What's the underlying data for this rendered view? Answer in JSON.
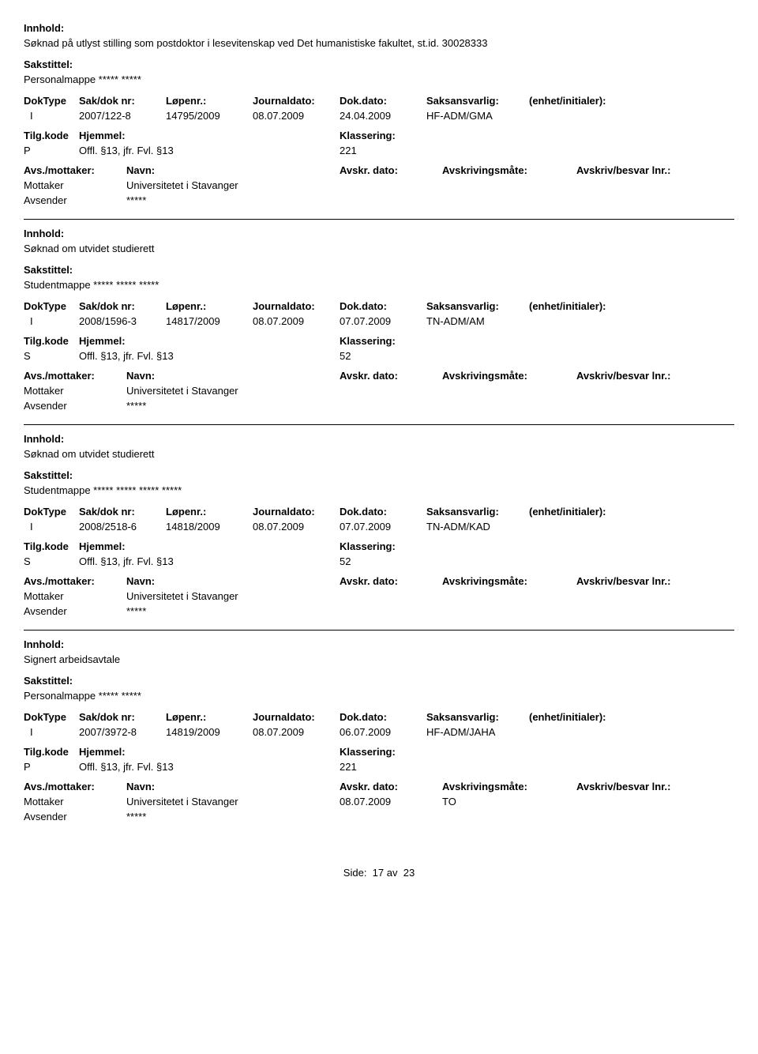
{
  "labels": {
    "innhold": "Innhold:",
    "sakstittel": "Sakstittel:",
    "doktype": "DokType",
    "sakdoknr": "Sak/dok nr:",
    "lopenr": "Løpenr.:",
    "journaldato": "Journaldato:",
    "dokdato": "Dok.dato:",
    "saksansvarlig": "Saksansvarlig:",
    "enhet": "(enhet/initialer):",
    "tilgkode": "Tilg.kode",
    "hjemmel": "Hjemmel:",
    "klassering": "Klassering:",
    "avsmottaker": "Avs./mottaker:",
    "navn": "Navn:",
    "avskrdato": "Avskr. dato:",
    "avskrivingsmate": "Avskrivingsmåte:",
    "avskrivbesvar": "Avskriv/besvar lnr.:",
    "mottaker": "Mottaker",
    "avsender": "Avsender"
  },
  "records": [
    {
      "innhold": "Søknad på utlyst stilling som postdoktor i lesevitenskap ved Det humanistiske fakultet, st.id. 30028333",
      "sakstittel": "Personalmappe ***** *****",
      "doktype": "I",
      "sakdoknr": "2007/122-8",
      "lopenr": "14795/2009",
      "journaldato": "08.07.2009",
      "dokdato": "24.04.2009",
      "saksansvarlig": "HF-ADM/GMA",
      "tilgkode": "P",
      "hjemmel": "Offl. §13, jfr. Fvl. §13",
      "klassering": "221",
      "mottaker_navn": "Universitetet i Stavanger",
      "avsender_navn": "*****",
      "avskrdato": "",
      "avskrivingsmate": ""
    },
    {
      "innhold": "Søknad om utvidet studierett",
      "sakstittel": "Studentmappe ***** ***** *****",
      "doktype": "I",
      "sakdoknr": "2008/1596-3",
      "lopenr": "14817/2009",
      "journaldato": "08.07.2009",
      "dokdato": "07.07.2009",
      "saksansvarlig": "TN-ADM/AM",
      "tilgkode": "S",
      "hjemmel": "Offl. §13, jfr. Fvl. §13",
      "klassering": "52",
      "mottaker_navn": "Universitetet i Stavanger",
      "avsender_navn": "*****",
      "avskrdato": "",
      "avskrivingsmate": ""
    },
    {
      "innhold": "Søknad om utvidet studierett",
      "sakstittel": "Studentmappe ***** ***** ***** *****",
      "doktype": "I",
      "sakdoknr": "2008/2518-6",
      "lopenr": "14818/2009",
      "journaldato": "08.07.2009",
      "dokdato": "07.07.2009",
      "saksansvarlig": "TN-ADM/KAD",
      "tilgkode": "S",
      "hjemmel": "Offl. §13, jfr. Fvl. §13",
      "klassering": "52",
      "mottaker_navn": "Universitetet i Stavanger",
      "avsender_navn": "*****",
      "avskrdato": "",
      "avskrivingsmate": ""
    },
    {
      "innhold": "Signert arbeidsavtale",
      "sakstittel": "Personalmappe ***** *****",
      "doktype": "I",
      "sakdoknr": "2007/3972-8",
      "lopenr": "14819/2009",
      "journaldato": "08.07.2009",
      "dokdato": "06.07.2009",
      "saksansvarlig": "HF-ADM/JAHA",
      "tilgkode": "P",
      "hjemmel": "Offl. §13, jfr. Fvl. §13",
      "klassering": "221",
      "mottaker_navn": "Universitetet i Stavanger",
      "avsender_navn": "*****",
      "avskrdato": "08.07.2009",
      "avskrivingsmate": "TO"
    }
  ],
  "footer": {
    "side": "Side:",
    "page": "17",
    "av": "av",
    "total": "23"
  }
}
